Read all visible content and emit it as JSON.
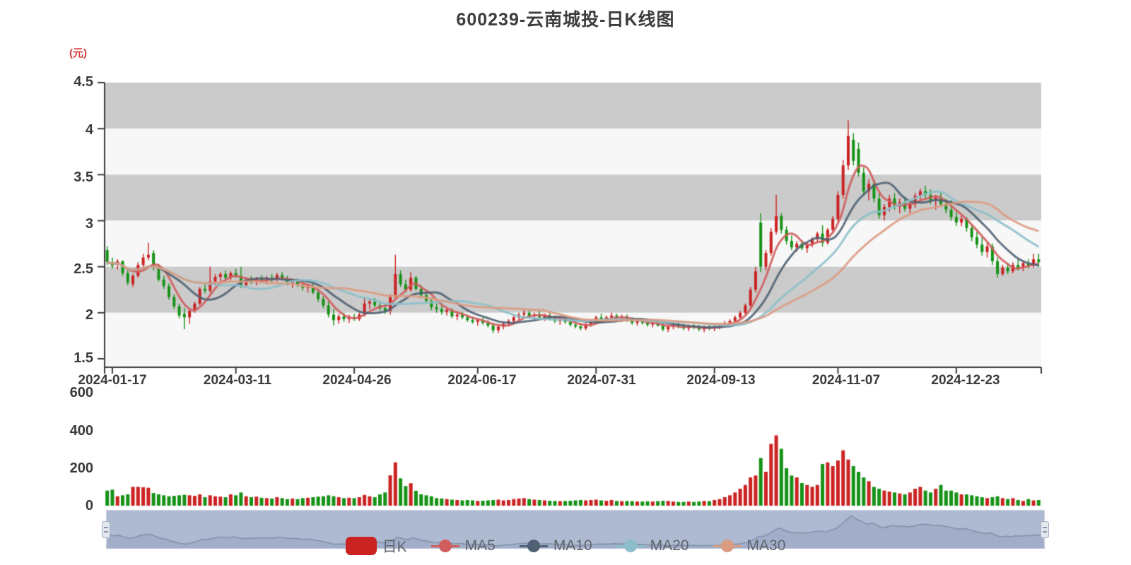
{
  "chart": {
    "title": "600239-云南城投-日K线图"
  },
  "axes": {
    "y_price": {
      "unit": "(元)",
      "min": 1.5,
      "max": 4.5,
      "ticks": [
        "4.5",
        "4",
        "3.5",
        "3",
        "2.5",
        "2",
        "1.5"
      ]
    },
    "y_volume": {
      "min": 0,
      "max": 600,
      "ticks": [
        "600",
        "400",
        "200",
        "0"
      ]
    },
    "x": {
      "ticks": [
        {
          "label": "2024-01-17",
          "index": 1
        },
        {
          "label": "2024-03-11",
          "index": 25
        },
        {
          "label": "2024-04-26",
          "index": 48
        },
        {
          "label": "2024-06-17",
          "index": 72
        },
        {
          "label": "2024-07-31",
          "index": 95
        },
        {
          "label": "2024-09-13",
          "index": 118
        },
        {
          "label": "2024-11-07",
          "index": 142
        },
        {
          "label": "2024-12-23",
          "index": 165
        }
      ]
    }
  },
  "legend": {
    "items": [
      {
        "label": "日K",
        "type": "bar",
        "color": "#cb2222"
      },
      {
        "label": "MA5",
        "type": "line",
        "color": "#d05c5c"
      },
      {
        "label": "MA10",
        "type": "line",
        "color": "#4f6172"
      },
      {
        "label": "MA20",
        "type": "line",
        "color": "#8cbfcb"
      },
      {
        "label": "MA30",
        "type": "line",
        "color": "#dc9c82"
      }
    ]
  },
  "colors": {
    "up": "#cb2222",
    "down": "#169216",
    "ma5": "#d05c5c",
    "ma10": "#4f6172",
    "ma20": "#8cbfcb",
    "ma30": "#dc9c82",
    "band_gray": "#cbcbcb",
    "band_light": "#f7f7f7",
    "axis": "#3c3c3c",
    "nav_bg": "#aeb9d2",
    "nav_line": "#8090aa",
    "nav_fill": "rgba(128,144,176,0.25)"
  },
  "chart_data": {
    "type": "candlestick",
    "title": "600239-云南城投-日K线图",
    "price_axis": {
      "label": "(元)",
      "min": 1.5,
      "max": 4.5
    },
    "volume_axis": {
      "min": 0,
      "max": 600
    },
    "x_tick_labels": [
      "2024-01-17",
      "2024-03-11",
      "2024-04-26",
      "2024-06-17",
      "2024-07-31",
      "2024-09-13",
      "2024-11-07",
      "2024-12-23"
    ],
    "moving_averages": [
      {
        "name": "MA5",
        "window": 5
      },
      {
        "name": "MA10",
        "window": 10
      },
      {
        "name": "MA20",
        "window": 20
      },
      {
        "name": "MA30",
        "window": 30
      }
    ],
    "encoding": "[open, high, low, close, volume]",
    "candles": [
      [
        2.68,
        2.72,
        2.52,
        2.55,
        80
      ],
      [
        2.55,
        2.6,
        2.48,
        2.51,
        85
      ],
      [
        2.53,
        2.58,
        2.47,
        2.56,
        50
      ],
      [
        2.56,
        2.57,
        2.4,
        2.43,
        55
      ],
      [
        2.43,
        2.46,
        2.3,
        2.33,
        60
      ],
      [
        2.31,
        2.42,
        2.28,
        2.4,
        100
      ],
      [
        2.4,
        2.55,
        2.38,
        2.52,
        100
      ],
      [
        2.52,
        2.64,
        2.49,
        2.6,
        98
      ],
      [
        2.6,
        2.76,
        2.57,
        2.63,
        95
      ],
      [
        2.65,
        2.68,
        2.46,
        2.49,
        67
      ],
      [
        2.5,
        2.53,
        2.34,
        2.36,
        60
      ],
      [
        2.36,
        2.4,
        2.26,
        2.29,
        55
      ],
      [
        2.29,
        2.32,
        2.14,
        2.17,
        50
      ],
      [
        2.17,
        2.2,
        2.04,
        2.07,
        52
      ],
      [
        2.07,
        2.1,
        1.94,
        1.97,
        55
      ],
      [
        1.99,
        2.05,
        1.82,
        1.95,
        58
      ],
      [
        1.95,
        2.03,
        1.88,
        2.02,
        55
      ],
      [
        2.02,
        2.12,
        2.0,
        2.1,
        52
      ],
      [
        2.1,
        2.28,
        2.08,
        2.26,
        60
      ],
      [
        2.26,
        2.31,
        2.21,
        2.24,
        45
      ],
      [
        2.24,
        2.5,
        2.22,
        2.34,
        55
      ],
      [
        2.34,
        2.42,
        2.3,
        2.39,
        50
      ],
      [
        2.39,
        2.44,
        2.34,
        2.42,
        48
      ],
      [
        2.42,
        2.46,
        2.36,
        2.38,
        45
      ],
      [
        2.38,
        2.45,
        2.35,
        2.43,
        60
      ],
      [
        2.43,
        2.48,
        2.38,
        2.4,
        55
      ],
      [
        2.4,
        2.5,
        2.27,
        2.3,
        70
      ],
      [
        2.3,
        2.38,
        2.28,
        2.36,
        50
      ],
      [
        2.36,
        2.4,
        2.31,
        2.33,
        45
      ],
      [
        2.33,
        2.39,
        2.3,
        2.37,
        48
      ],
      [
        2.37,
        2.41,
        2.32,
        2.35,
        42
      ],
      [
        2.35,
        2.4,
        2.31,
        2.38,
        40
      ],
      [
        2.38,
        2.42,
        2.33,
        2.36,
        38
      ],
      [
        2.36,
        2.43,
        2.34,
        2.41,
        45
      ],
      [
        2.41,
        2.44,
        2.35,
        2.37,
        40
      ],
      [
        2.37,
        2.4,
        2.3,
        2.32,
        35
      ],
      [
        2.32,
        2.36,
        2.27,
        2.34,
        38
      ],
      [
        2.34,
        2.37,
        2.28,
        2.3,
        35
      ],
      [
        2.3,
        2.33,
        2.24,
        2.27,
        40
      ],
      [
        2.27,
        2.31,
        2.22,
        2.29,
        42
      ],
      [
        2.29,
        2.32,
        2.2,
        2.22,
        45
      ],
      [
        2.22,
        2.26,
        2.12,
        2.15,
        48
      ],
      [
        2.15,
        2.18,
        2.05,
        2.08,
        50
      ],
      [
        2.08,
        2.12,
        1.95,
        1.98,
        55
      ],
      [
        1.98,
        2.04,
        1.86,
        1.92,
        50
      ],
      [
        1.92,
        1.99,
        1.88,
        1.96,
        45
      ],
      [
        1.96,
        2.0,
        1.9,
        1.93,
        40
      ],
      [
        1.93,
        1.98,
        1.89,
        1.95,
        42
      ],
      [
        1.95,
        1.99,
        1.91,
        1.93,
        40
      ],
      [
        1.93,
        2.0,
        1.91,
        1.98,
        45
      ],
      [
        1.98,
        2.17,
        1.96,
        2.1,
        57
      ],
      [
        2.1,
        2.15,
        2.04,
        2.12,
        50
      ],
      [
        2.12,
        2.16,
        2.06,
        2.08,
        45
      ],
      [
        2.08,
        2.13,
        2.02,
        2.05,
        60
      ],
      [
        2.05,
        2.09,
        1.99,
        2.02,
        70
      ],
      [
        2.02,
        2.2,
        1.98,
        2.18,
        161
      ],
      [
        2.18,
        2.63,
        2.16,
        2.42,
        230
      ],
      [
        2.42,
        2.46,
        2.28,
        2.31,
        145
      ],
      [
        2.31,
        2.36,
        2.22,
        2.25,
        104
      ],
      [
        2.25,
        2.44,
        2.23,
        2.38,
        119
      ],
      [
        2.38,
        2.4,
        2.24,
        2.26,
        79
      ],
      [
        2.26,
        2.3,
        2.16,
        2.19,
        60
      ],
      [
        2.19,
        2.23,
        2.1,
        2.13,
        55
      ],
      [
        2.13,
        2.16,
        2.03,
        2.06,
        50
      ],
      [
        2.06,
        2.1,
        2.0,
        2.04,
        40
      ],
      [
        2.04,
        2.08,
        1.98,
        2.01,
        38
      ],
      [
        2.01,
        2.06,
        1.97,
        2.03,
        35
      ],
      [
        2.03,
        2.05,
        1.94,
        1.96,
        32
      ],
      [
        1.96,
        2.0,
        1.92,
        1.98,
        30
      ],
      [
        1.98,
        2.01,
        1.93,
        1.95,
        28
      ],
      [
        1.95,
        1.98,
        1.9,
        1.92,
        30
      ],
      [
        1.92,
        1.96,
        1.88,
        1.9,
        28
      ],
      [
        1.9,
        1.94,
        1.86,
        1.92,
        25
      ],
      [
        1.92,
        1.95,
        1.87,
        1.89,
        26
      ],
      [
        1.89,
        1.92,
        1.84,
        1.86,
        28
      ],
      [
        1.86,
        1.89,
        1.78,
        1.81,
        30
      ],
      [
        1.81,
        1.87,
        1.78,
        1.85,
        32
      ],
      [
        1.85,
        1.9,
        1.82,
        1.88,
        28
      ],
      [
        1.88,
        1.93,
        1.85,
        1.91,
        30
      ],
      [
        1.91,
        1.97,
        1.88,
        1.95,
        35
      ],
      [
        1.95,
        2.0,
        1.92,
        1.98,
        38
      ],
      [
        1.98,
        2.04,
        1.95,
        2.0,
        40
      ],
      [
        2.0,
        2.03,
        1.94,
        1.96,
        35
      ],
      [
        1.96,
        2.0,
        1.92,
        1.98,
        32
      ],
      [
        1.98,
        2.02,
        1.93,
        1.95,
        30
      ],
      [
        1.95,
        1.99,
        1.91,
        1.97,
        28
      ],
      [
        1.97,
        2.0,
        1.92,
        1.94,
        26
      ],
      [
        1.94,
        1.97,
        1.89,
        1.91,
        25
      ],
      [
        1.91,
        1.95,
        1.87,
        1.93,
        24
      ],
      [
        1.93,
        1.96,
        1.88,
        1.9,
        25
      ],
      [
        1.9,
        1.93,
        1.85,
        1.87,
        26
      ],
      [
        1.87,
        1.91,
        1.83,
        1.85,
        28
      ],
      [
        1.85,
        1.89,
        1.81,
        1.83,
        30
      ],
      [
        1.83,
        1.89,
        1.81,
        1.87,
        28
      ],
      [
        1.87,
        1.93,
        1.85,
        1.91,
        30
      ],
      [
        1.91,
        1.97,
        1.89,
        1.95,
        32
      ],
      [
        1.95,
        1.99,
        1.91,
        1.93,
        28
      ],
      [
        1.93,
        1.97,
        1.9,
        1.95,
        26
      ],
      [
        1.95,
        2.0,
        1.92,
        1.97,
        30
      ],
      [
        1.97,
        1.99,
        1.92,
        1.94,
        25
      ],
      [
        1.94,
        1.98,
        1.9,
        1.96,
        24
      ],
      [
        1.96,
        1.98,
        1.9,
        1.92,
        25
      ],
      [
        1.92,
        1.95,
        1.87,
        1.89,
        24
      ],
      [
        1.89,
        1.93,
        1.86,
        1.91,
        22
      ],
      [
        1.91,
        1.94,
        1.87,
        1.89,
        22
      ],
      [
        1.89,
        1.92,
        1.85,
        1.87,
        23
      ],
      [
        1.87,
        1.91,
        1.84,
        1.89,
        22
      ],
      [
        1.89,
        1.92,
        1.85,
        1.86,
        24
      ],
      [
        1.86,
        1.89,
        1.8,
        1.82,
        26
      ],
      [
        1.82,
        1.87,
        1.79,
        1.85,
        25
      ],
      [
        1.85,
        1.89,
        1.82,
        1.87,
        22
      ],
      [
        1.87,
        1.9,
        1.83,
        1.85,
        20
      ],
      [
        1.85,
        1.88,
        1.81,
        1.83,
        20
      ],
      [
        1.83,
        1.87,
        1.8,
        1.85,
        22
      ],
      [
        1.85,
        1.88,
        1.82,
        1.84,
        20
      ],
      [
        1.84,
        1.87,
        1.8,
        1.82,
        22
      ],
      [
        1.82,
        1.86,
        1.79,
        1.84,
        25
      ],
      [
        1.84,
        1.87,
        1.81,
        1.83,
        24
      ],
      [
        1.83,
        1.87,
        1.8,
        1.85,
        30
      ],
      [
        1.85,
        1.89,
        1.82,
        1.87,
        35
      ],
      [
        1.87,
        1.91,
        1.84,
        1.89,
        45
      ],
      [
        1.87,
        1.93,
        1.85,
        1.91,
        55
      ],
      [
        1.91,
        1.97,
        1.89,
        1.95,
        70
      ],
      [
        1.95,
        2.02,
        1.93,
        2.0,
        90
      ],
      [
        2.0,
        2.1,
        1.98,
        2.08,
        110
      ],
      [
        2.08,
        2.28,
        2.06,
        2.25,
        150
      ],
      [
        2.25,
        2.5,
        2.22,
        2.45,
        160
      ],
      [
        2.98,
        3.08,
        2.44,
        2.5,
        253
      ],
      [
        2.5,
        2.68,
        2.46,
        2.65,
        180
      ],
      [
        2.65,
        2.92,
        2.62,
        2.88,
        328
      ],
      [
        2.88,
        3.28,
        2.85,
        3.05,
        373
      ],
      [
        3.05,
        3.08,
        2.86,
        2.9,
        302
      ],
      [
        2.9,
        2.94,
        2.74,
        2.78,
        199
      ],
      [
        2.78,
        2.84,
        2.68,
        2.71,
        160
      ],
      [
        2.71,
        2.78,
        2.66,
        2.75,
        150
      ],
      [
        2.75,
        2.79,
        2.68,
        2.7,
        120
      ],
      [
        2.7,
        2.76,
        2.65,
        2.74,
        110
      ],
      [
        2.74,
        2.82,
        2.71,
        2.8,
        100
      ],
      [
        2.8,
        2.88,
        2.76,
        2.86,
        110
      ],
      [
        2.86,
        2.95,
        2.72,
        2.76,
        221
      ],
      [
        2.76,
        2.92,
        2.74,
        2.9,
        230
      ],
      [
        2.9,
        3.05,
        2.87,
        3.02,
        210
      ],
      [
        3.02,
        3.32,
        2.99,
        3.28,
        240
      ],
      [
        3.28,
        3.66,
        3.24,
        3.6,
        294
      ],
      [
        3.6,
        4.09,
        3.55,
        3.92,
        245
      ],
      [
        3.88,
        3.95,
        3.6,
        3.65,
        210
      ],
      [
        3.78,
        3.85,
        3.48,
        3.52,
        180
      ],
      [
        3.52,
        3.58,
        3.28,
        3.32,
        150
      ],
      [
        3.32,
        3.45,
        3.22,
        3.4,
        130
      ],
      [
        3.4,
        3.44,
        3.2,
        3.24,
        100
      ],
      [
        3.24,
        3.3,
        3.02,
        3.06,
        90
      ],
      [
        3.06,
        3.18,
        3.0,
        3.15,
        80
      ],
      [
        3.15,
        3.28,
        3.1,
        3.24,
        75
      ],
      [
        3.24,
        3.3,
        3.12,
        3.16,
        70
      ],
      [
        3.16,
        3.24,
        3.08,
        3.2,
        65
      ],
      [
        3.2,
        3.26,
        3.1,
        3.13,
        60
      ],
      [
        3.13,
        3.22,
        3.08,
        3.18,
        70
      ],
      [
        3.18,
        3.3,
        3.14,
        3.27,
        90
      ],
      [
        3.27,
        3.35,
        3.2,
        3.32,
        100
      ],
      [
        3.32,
        3.38,
        3.24,
        3.28,
        80
      ],
      [
        3.28,
        3.34,
        3.18,
        3.22,
        70
      ],
      [
        3.22,
        3.28,
        3.12,
        3.25,
        90
      ],
      [
        3.25,
        3.31,
        3.15,
        3.18,
        110
      ],
      [
        3.18,
        3.24,
        3.08,
        3.12,
        80
      ],
      [
        3.12,
        3.22,
        3.0,
        3.04,
        80
      ],
      [
        3.04,
        3.1,
        2.94,
        2.98,
        70
      ],
      [
        2.98,
        3.06,
        2.94,
        3.02,
        60
      ],
      [
        3.02,
        3.04,
        2.88,
        2.92,
        60
      ],
      [
        2.92,
        2.96,
        2.78,
        2.82,
        55
      ],
      [
        2.82,
        2.88,
        2.7,
        2.74,
        50
      ],
      [
        2.74,
        2.82,
        2.62,
        2.66,
        45
      ],
      [
        2.66,
        2.76,
        2.6,
        2.72,
        40
      ],
      [
        2.72,
        2.75,
        2.52,
        2.56,
        45
      ],
      [
        2.56,
        2.6,
        2.38,
        2.42,
        50
      ],
      [
        2.42,
        2.52,
        2.4,
        2.49,
        40
      ],
      [
        2.49,
        2.54,
        2.42,
        2.45,
        35
      ],
      [
        2.45,
        2.55,
        2.43,
        2.52,
        40
      ],
      [
        2.52,
        2.58,
        2.46,
        2.49,
        30
      ],
      [
        2.49,
        2.56,
        2.45,
        2.54,
        25
      ],
      [
        2.54,
        2.58,
        2.48,
        2.51,
        35
      ],
      [
        2.51,
        2.64,
        2.49,
        2.58,
        28
      ],
      [
        2.58,
        2.64,
        2.5,
        2.55,
        30
      ]
    ]
  }
}
